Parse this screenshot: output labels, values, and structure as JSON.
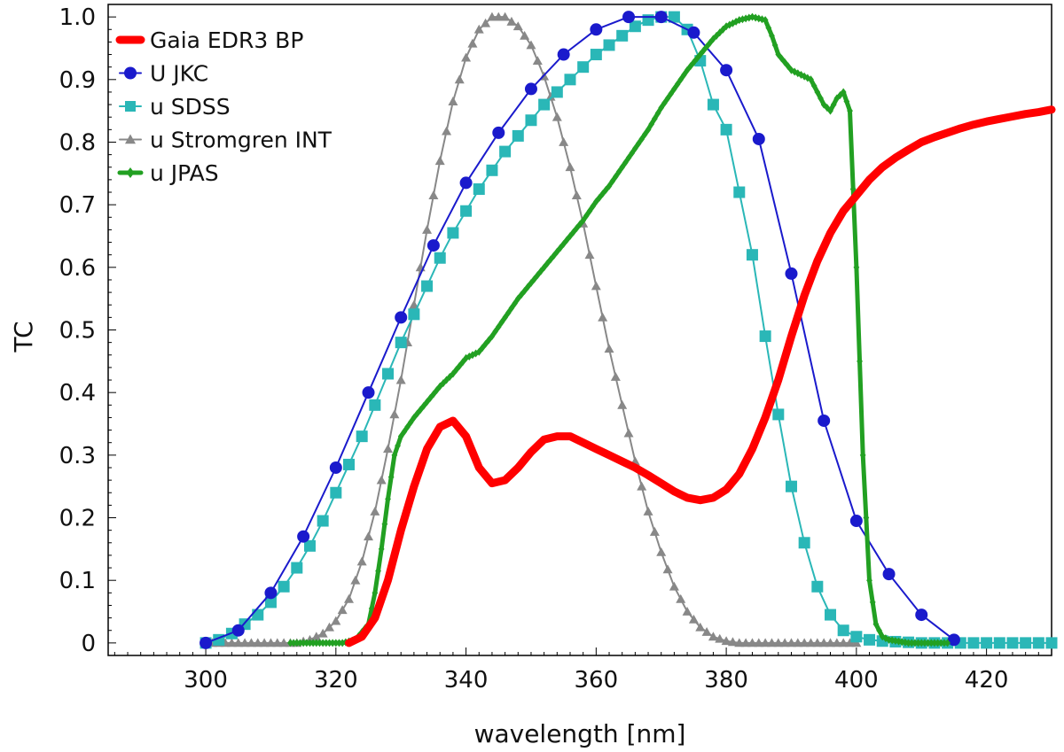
{
  "chart_data": {
    "type": "line",
    "title": "",
    "xlabel": "wavelength [nm]",
    "ylabel": "TC",
    "xlim": [
      285,
      430
    ],
    "ylim": [
      -0.02,
      1.02
    ],
    "x_ticks": [
      300,
      320,
      340,
      360,
      380,
      400,
      420
    ],
    "y_ticks": [
      0,
      0.1,
      0.2,
      0.3,
      0.4,
      0.5,
      0.6,
      0.7,
      0.8,
      0.9,
      1.0
    ],
    "y_tick_labels": [
      "0",
      "0.1",
      "0.2",
      "0.3",
      "0.4",
      "0.5",
      "0.6",
      "0.7",
      "0.8",
      "0.9",
      "1.0"
    ],
    "grid": false,
    "legend_position": "top-left",
    "series": [
      {
        "name": "Gaia EDR3 BP",
        "color": "#ff0000",
        "marker": "thick-line",
        "x": [
          322,
          324,
          326,
          328,
          330,
          332,
          334,
          336,
          338,
          340,
          342,
          344,
          346,
          348,
          350,
          352,
          354,
          356,
          358,
          360,
          362,
          364,
          366,
          368,
          370,
          372,
          374,
          376,
          378,
          380,
          382,
          384,
          386,
          388,
          390,
          392,
          394,
          396,
          398,
          400,
          402,
          404,
          406,
          408,
          410,
          412,
          414,
          416,
          418,
          420,
          422,
          424,
          426,
          428,
          430
        ],
        "y": [
          0.0,
          0.01,
          0.04,
          0.1,
          0.18,
          0.25,
          0.31,
          0.345,
          0.355,
          0.33,
          0.28,
          0.255,
          0.26,
          0.28,
          0.305,
          0.325,
          0.33,
          0.33,
          0.32,
          0.31,
          0.3,
          0.29,
          0.28,
          0.268,
          0.255,
          0.242,
          0.232,
          0.228,
          0.232,
          0.245,
          0.27,
          0.31,
          0.36,
          0.42,
          0.49,
          0.555,
          0.61,
          0.655,
          0.69,
          0.715,
          0.74,
          0.76,
          0.775,
          0.788,
          0.8,
          0.808,
          0.815,
          0.822,
          0.828,
          0.833,
          0.837,
          0.841,
          0.845,
          0.848,
          0.852
        ]
      },
      {
        "name": "U JKC",
        "color": "#1a1acc",
        "marker": "circle",
        "x": [
          300,
          305,
          310,
          315,
          320,
          325,
          330,
          335,
          340,
          345,
          350,
          355,
          360,
          365,
          370,
          375,
          380,
          385,
          390,
          395,
          400,
          405,
          410,
          415
        ],
        "y": [
          0.0,
          0.02,
          0.08,
          0.17,
          0.28,
          0.4,
          0.52,
          0.635,
          0.735,
          0.815,
          0.885,
          0.94,
          0.98,
          1.0,
          1.0,
          0.975,
          0.915,
          0.805,
          0.59,
          0.355,
          0.195,
          0.11,
          0.045,
          0.005
        ]
      },
      {
        "name": "u SDSS",
        "color": "#2ab7b7",
        "marker": "square",
        "x": [
          300,
          302,
          304,
          306,
          308,
          310,
          312,
          314,
          316,
          318,
          320,
          322,
          324,
          326,
          328,
          330,
          332,
          334,
          336,
          338,
          340,
          342,
          344,
          346,
          348,
          350,
          352,
          354,
          356,
          358,
          360,
          362,
          364,
          366,
          368,
          370,
          372,
          374,
          376,
          378,
          380,
          382,
          384,
          386,
          388,
          390,
          392,
          394,
          396,
          398,
          400,
          402,
          404,
          406,
          408,
          410,
          412,
          414,
          416,
          418,
          420,
          422,
          424,
          426,
          428,
          430
        ],
        "y": [
          0.0,
          0.005,
          0.015,
          0.03,
          0.045,
          0.065,
          0.09,
          0.12,
          0.155,
          0.195,
          0.24,
          0.285,
          0.33,
          0.38,
          0.43,
          0.48,
          0.525,
          0.57,
          0.615,
          0.655,
          0.69,
          0.725,
          0.755,
          0.785,
          0.81,
          0.835,
          0.86,
          0.88,
          0.9,
          0.92,
          0.94,
          0.955,
          0.97,
          0.985,
          0.995,
          1.0,
          1.0,
          0.98,
          0.93,
          0.86,
          0.82,
          0.72,
          0.62,
          0.49,
          0.365,
          0.25,
          0.16,
          0.09,
          0.045,
          0.02,
          0.01,
          0.005,
          0.003,
          0.002,
          0.001,
          0.0,
          0.0,
          0.0,
          0.0,
          0.0,
          0.0,
          0.0,
          0.0,
          0.0,
          0.0,
          0.0
        ]
      },
      {
        "name": "u Stromgren INT",
        "color": "#888888",
        "marker": "triangle",
        "x": [
          300,
          302,
          304,
          306,
          308,
          310,
          312,
          314,
          316,
          318,
          320,
          322,
          324,
          326,
          328,
          330,
          332,
          334,
          336,
          338,
          340,
          342,
          344,
          346,
          348,
          350,
          352,
          354,
          356,
          358,
          360,
          362,
          364,
          366,
          368,
          370,
          372,
          374,
          376,
          378,
          380,
          382,
          384,
          386,
          388,
          390,
          392,
          394,
          396,
          398,
          400
        ],
        "y": [
          0.0,
          0.0,
          0.0,
          0.0,
          0.0,
          0.0,
          0.0,
          0.0,
          0.005,
          0.015,
          0.035,
          0.07,
          0.13,
          0.21,
          0.31,
          0.42,
          0.54,
          0.66,
          0.77,
          0.865,
          0.935,
          0.98,
          1.0,
          1.0,
          0.985,
          0.955,
          0.905,
          0.84,
          0.76,
          0.67,
          0.57,
          0.47,
          0.38,
          0.29,
          0.21,
          0.145,
          0.09,
          0.05,
          0.025,
          0.01,
          0.003,
          0.0,
          0.0,
          0.0,
          0.0,
          0.0,
          0.0,
          0.0,
          0.0,
          0.0,
          0.0
        ]
      },
      {
        "name": "u JPAS",
        "color": "#22a022",
        "marker": "diamond",
        "x": [
          313,
          315,
          318,
          321,
          323,
          325,
          326,
          327,
          328,
          329,
          330,
          332,
          334,
          336,
          338,
          340,
          342,
          344,
          346,
          348,
          350,
          352,
          354,
          356,
          358,
          360,
          362,
          364,
          366,
          368,
          370,
          372,
          374,
          376,
          378,
          380,
          382,
          384,
          386,
          387,
          388,
          390,
          392,
          393,
          394,
          395,
          396,
          397,
          398,
          399,
          400,
          401,
          402,
          403,
          404,
          405,
          408,
          411,
          414
        ],
        "y": [
          0.0,
          0.0,
          0.0,
          0.0,
          0.005,
          0.03,
          0.08,
          0.15,
          0.23,
          0.3,
          0.33,
          0.36,
          0.385,
          0.41,
          0.43,
          0.455,
          0.465,
          0.49,
          0.52,
          0.55,
          0.575,
          0.6,
          0.625,
          0.65,
          0.675,
          0.705,
          0.73,
          0.76,
          0.79,
          0.82,
          0.855,
          0.885,
          0.915,
          0.94,
          0.965,
          0.985,
          0.995,
          1.0,
          0.995,
          0.97,
          0.94,
          0.915,
          0.905,
          0.9,
          0.88,
          0.86,
          0.85,
          0.87,
          0.88,
          0.85,
          0.6,
          0.3,
          0.1,
          0.03,
          0.01,
          0.005,
          0.0,
          0.0,
          0.0
        ]
      }
    ]
  }
}
